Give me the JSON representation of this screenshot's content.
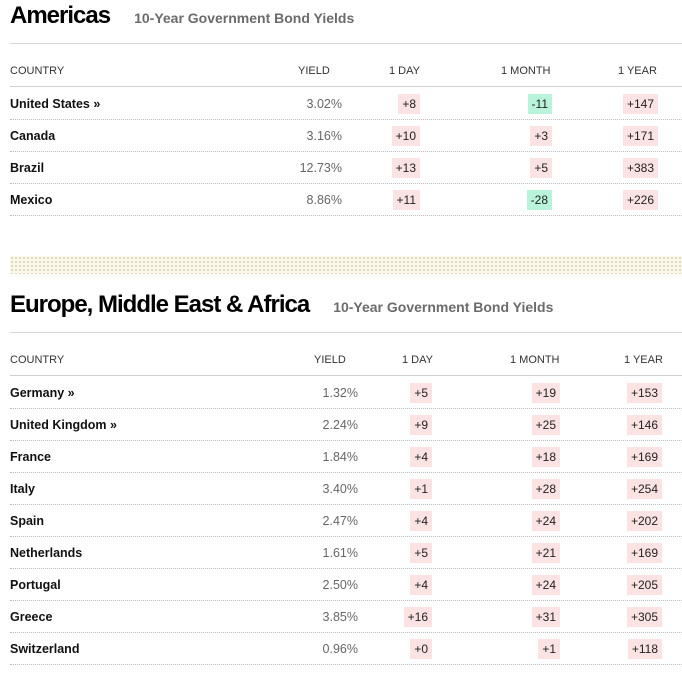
{
  "americas": {
    "title": "Americas",
    "subtitle": "10-Year Government Bond Yields",
    "headers": {
      "country": "COUNTRY",
      "yield": "YIELD",
      "day": "1 DAY",
      "month": "1 MONTH",
      "year": "1 YEAR"
    },
    "rows": [
      {
        "country": "United States »",
        "yield": "3.02%",
        "day": "+8",
        "month": "-11",
        "year": "+147"
      },
      {
        "country": "Canada",
        "yield": "3.16%",
        "day": "+10",
        "month": "+3",
        "year": "+171"
      },
      {
        "country": "Brazil",
        "yield": "12.73%",
        "day": "+13",
        "month": "+5",
        "year": "+383"
      },
      {
        "country": "Mexico",
        "yield": "8.86%",
        "day": "+11",
        "month": "-28",
        "year": "+226"
      }
    ]
  },
  "emea": {
    "title": "Europe, Middle East & Africa",
    "subtitle": "10-Year Government Bond Yields",
    "headers": {
      "country": "COUNTRY",
      "yield": "YIELD",
      "day": "1 DAY",
      "month": "1 MONTH",
      "year": "1 YEAR"
    },
    "rows": [
      {
        "country": "Germany »",
        "yield": "1.32%",
        "day": "+5",
        "month": "+19",
        "year": "+153"
      },
      {
        "country": "United Kingdom »",
        "yield": "2.24%",
        "day": "+9",
        "month": "+25",
        "year": "+146"
      },
      {
        "country": "France",
        "yield": "1.84%",
        "day": "+4",
        "month": "+18",
        "year": "+169"
      },
      {
        "country": "Italy",
        "yield": "3.40%",
        "day": "+1",
        "month": "+28",
        "year": "+254"
      },
      {
        "country": "Spain",
        "yield": "2.47%",
        "day": "+4",
        "month": "+24",
        "year": "+202"
      },
      {
        "country": "Netherlands",
        "yield": "1.61%",
        "day": "+5",
        "month": "+21",
        "year": "+169"
      },
      {
        "country": "Portugal",
        "yield": "2.50%",
        "day": "+4",
        "month": "+24",
        "year": "+205"
      },
      {
        "country": "Greece",
        "yield": "3.85%",
        "day": "+16",
        "month": "+31",
        "year": "+305"
      },
      {
        "country": "Switzerland",
        "yield": "0.96%",
        "day": "+0",
        "month": "+1",
        "year": "+118"
      }
    ]
  },
  "colors": {
    "positive_bg": "#fbe3e3",
    "negative_bg": "#b9f3dc",
    "subtitle": "#6b6b6b"
  }
}
